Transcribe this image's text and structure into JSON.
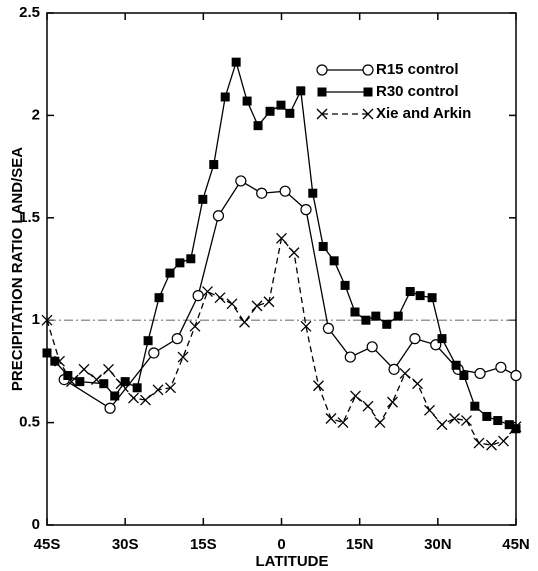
{
  "chart_data": {
    "type": "line",
    "xlabel": "LATITUDE",
    "ylabel": "PRECIPITATION RATIO LAND/SEA",
    "xlim": [
      -45,
      45
    ],
    "xticks": [
      {
        "value": -45,
        "label": "45S"
      },
      {
        "value": -30,
        "label": "30S"
      },
      {
        "value": -15,
        "label": "15S"
      },
      0,
      {
        "value": 15,
        "label": "15N"
      },
      {
        "value": 30,
        "label": "30N"
      },
      {
        "value": 45,
        "label": "45N"
      }
    ],
    "ylim": [
      0,
      2.5
    ],
    "yticks": [
      0,
      0.5,
      1,
      1.5,
      2,
      2.5
    ],
    "hline": 1,
    "legend": "upper right",
    "series": [
      {
        "name": "R15 control",
        "color": "#000000",
        "marker": "circle",
        "dash": "solid",
        "x": [
          -41.7,
          -32.9,
          -24.5,
          -20.0,
          -16.0,
          -12.1,
          -7.8,
          -3.8,
          0.7,
          4.7,
          9.0,
          13.2,
          17.4,
          21.6,
          25.6,
          29.6,
          33.9,
          38.1,
          42.1,
          45.0
        ],
        "values": [
          0.71,
          0.57,
          0.84,
          0.91,
          1.12,
          1.51,
          1.68,
          1.62,
          1.63,
          1.54,
          0.96,
          0.82,
          0.87,
          0.76,
          0.91,
          0.88,
          0.76,
          0.74,
          0.77,
          0.73
        ]
      },
      {
        "name": "R30 control",
        "color": "#000000",
        "marker": "square",
        "dash": "solid",
        "x": [
          -45.0,
          -43.5,
          -41.0,
          -38.7,
          -34.1,
          -32.0,
          -30.0,
          -27.7,
          -25.6,
          -23.5,
          -21.4,
          -19.5,
          -17.4,
          -15.1,
          -13.0,
          -10.8,
          -8.7,
          -6.6,
          -4.5,
          -2.2,
          -0.1,
          1.6,
          3.7,
          6.0,
          8.0,
          10.1,
          12.2,
          14.1,
          16.2,
          18.1,
          20.2,
          22.4,
          24.7,
          26.6,
          28.9,
          30.8,
          33.5,
          35.0,
          37.1,
          39.4,
          41.5,
          43.7,
          45.0
        ],
        "values": [
          0.84,
          0.8,
          0.73,
          0.7,
          0.69,
          0.63,
          0.7,
          0.67,
          0.9,
          1.11,
          1.23,
          1.28,
          1.3,
          1.59,
          1.76,
          2.09,
          2.26,
          2.07,
          1.95,
          2.02,
          2.05,
          2.01,
          2.12,
          1.62,
          1.36,
          1.29,
          1.17,
          1.04,
          1.0,
          1.02,
          0.98,
          1.02,
          1.14,
          1.12,
          1.11,
          0.91,
          0.78,
          0.73,
          0.58,
          0.53,
          0.51,
          0.49,
          0.47
        ]
      },
      {
        "name": "Xie and Arkin",
        "color": "#000000",
        "marker": "x",
        "dash": "dashed",
        "x": [
          -45,
          -42.6,
          -40.3,
          -37.9,
          -35.5,
          -33.2,
          -30.8,
          -28.4,
          -26.1,
          -23.7,
          -21.3,
          -18.9,
          -16.6,
          -14.2,
          -11.8,
          -9.5,
          -7.1,
          -4.7,
          -2.4,
          0,
          2.4,
          4.7,
          7.1,
          9.5,
          11.8,
          14.2,
          16.6,
          18.9,
          21.3,
          23.7,
          26.1,
          28.4,
          30.8,
          33.2,
          35.5,
          37.9,
          40.3,
          42.6,
          45
        ],
        "values": [
          1.0,
          0.8,
          0.7,
          0.76,
          0.71,
          0.76,
          0.69,
          0.62,
          0.61,
          0.66,
          0.67,
          0.82,
          0.97,
          1.14,
          1.11,
          1.08,
          0.99,
          1.07,
          1.09,
          1.4,
          1.33,
          0.97,
          0.68,
          0.52,
          0.5,
          0.63,
          0.58,
          0.5,
          0.6,
          0.74,
          0.69,
          0.56,
          0.49,
          0.52,
          0.51,
          0.4,
          0.39,
          0.41,
          0.48
        ]
      }
    ]
  }
}
